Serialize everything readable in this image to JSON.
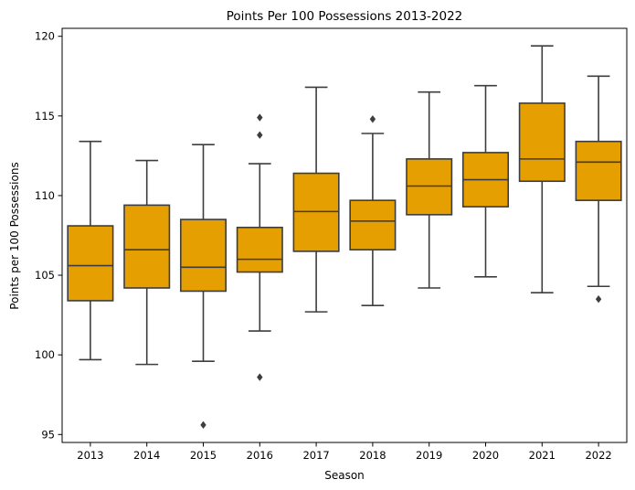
{
  "chart_data": {
    "type": "box",
    "title": "Points Per 100 Possessions 2013-2022",
    "xlabel": "Season",
    "ylabel": "Points per 100 Possessions",
    "ylim": [
      94.5,
      120.5
    ],
    "yticks": [
      95,
      100,
      105,
      110,
      115,
      120
    ],
    "grid": false,
    "box_color": "#e69f00",
    "line_color": "#3d3d3d",
    "categories": [
      "2013",
      "2014",
      "2015",
      "2016",
      "2017",
      "2018",
      "2019",
      "2020",
      "2021",
      "2022"
    ],
    "boxes": [
      {
        "season": "2013",
        "whisker_low": 99.7,
        "q1": 103.4,
        "median": 105.6,
        "q3": 108.1,
        "whisker_high": 113.4,
        "outliers": []
      },
      {
        "season": "2014",
        "whisker_low": 99.4,
        "q1": 104.2,
        "median": 106.6,
        "q3": 109.4,
        "whisker_high": 112.2,
        "outliers": []
      },
      {
        "season": "2015",
        "whisker_low": 99.6,
        "q1": 104.0,
        "median": 105.5,
        "q3": 108.5,
        "whisker_high": 113.2,
        "outliers": [
          95.6
        ]
      },
      {
        "season": "2016",
        "whisker_low": 101.5,
        "q1": 105.2,
        "median": 106.0,
        "q3": 108.0,
        "whisker_high": 112.0,
        "outliers": [
          98.6,
          113.8,
          114.9
        ]
      },
      {
        "season": "2017",
        "whisker_low": 102.7,
        "q1": 106.5,
        "median": 109.0,
        "q3": 111.4,
        "whisker_high": 116.8,
        "outliers": []
      },
      {
        "season": "2018",
        "whisker_low": 103.1,
        "q1": 106.6,
        "median": 108.4,
        "q3": 109.7,
        "whisker_high": 113.9,
        "outliers": [
          114.8
        ]
      },
      {
        "season": "2019",
        "whisker_low": 104.2,
        "q1": 108.8,
        "median": 110.6,
        "q3": 112.3,
        "whisker_high": 116.5,
        "outliers": []
      },
      {
        "season": "2020",
        "whisker_low": 104.9,
        "q1": 109.3,
        "median": 111.0,
        "q3": 112.7,
        "whisker_high": 116.9,
        "outliers": []
      },
      {
        "season": "2021",
        "whisker_low": 103.9,
        "q1": 110.9,
        "median": 112.3,
        "q3": 115.8,
        "whisker_high": 119.4,
        "outliers": []
      },
      {
        "season": "2022",
        "whisker_low": 104.3,
        "q1": 109.7,
        "median": 112.1,
        "q3": 113.4,
        "whisker_high": 117.5,
        "outliers": [
          103.5
        ]
      }
    ]
  }
}
